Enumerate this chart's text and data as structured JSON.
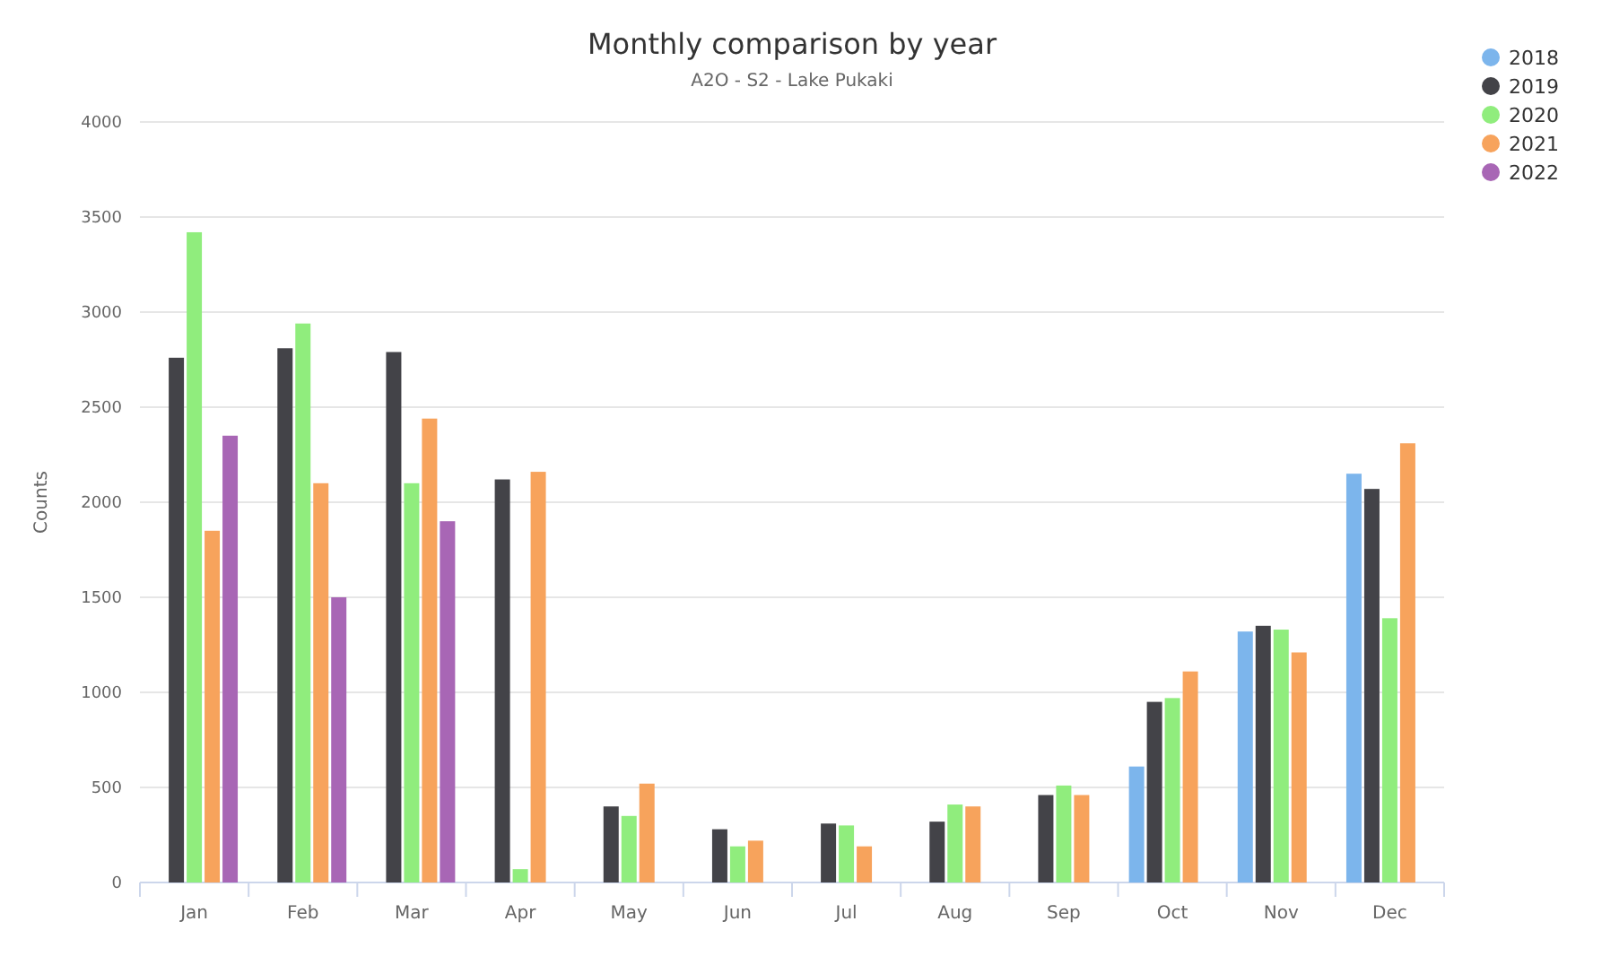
{
  "chart_data": {
    "type": "bar",
    "title": "Monthly comparison by year",
    "subtitle": "A2O - S2 - Lake Pukaki",
    "ylabel": "Counts",
    "categories": [
      "Jan",
      "Feb",
      "Mar",
      "Apr",
      "May",
      "Jun",
      "Jul",
      "Aug",
      "Sep",
      "Oct",
      "Nov",
      "Dec"
    ],
    "series": [
      {
        "name": "2018",
        "color": "#7cb5ec",
        "values": [
          null,
          null,
          null,
          null,
          null,
          null,
          null,
          null,
          null,
          610,
          1320,
          2150
        ]
      },
      {
        "name": "2019",
        "color": "#434348",
        "values": [
          2760,
          2810,
          2790,
          2120,
          400,
          280,
          310,
          320,
          460,
          950,
          1350,
          2070
        ]
      },
      {
        "name": "2020",
        "color": "#90ed7d",
        "values": [
          3420,
          2940,
          2100,
          70,
          350,
          190,
          300,
          410,
          510,
          970,
          1330,
          1390
        ]
      },
      {
        "name": "2021",
        "color": "#f7a35c",
        "values": [
          1850,
          2100,
          2440,
          2160,
          520,
          220,
          190,
          400,
          460,
          1110,
          1210,
          2310
        ]
      },
      {
        "name": "2022",
        "color": "#a866b5",
        "values": [
          2350,
          1500,
          1900,
          null,
          null,
          null,
          null,
          null,
          null,
          null,
          null,
          null
        ]
      }
    ],
    "ylim": [
      0,
      4000
    ],
    "yticks": [
      0,
      500,
      1000,
      1500,
      2000,
      2500,
      3000,
      3500,
      4000
    ],
    "grid": "y",
    "legend": "top right"
  }
}
